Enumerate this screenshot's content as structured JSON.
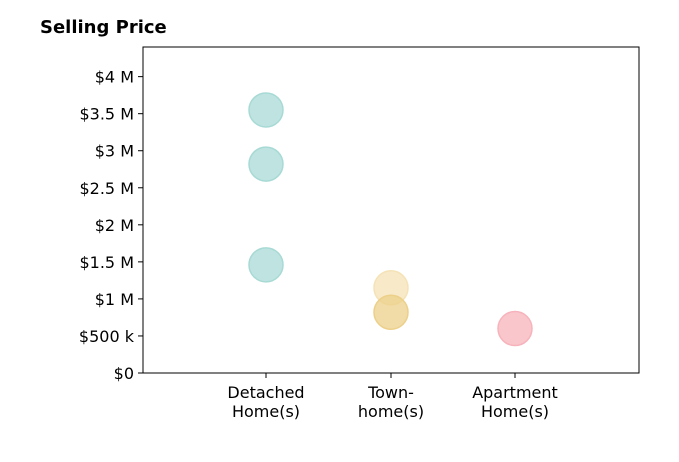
{
  "chart_data": {
    "type": "scatter",
    "title": "Selling Price",
    "categories": [
      [
        "Detached",
        "Home(s)"
      ],
      [
        "Town-",
        "home(s)"
      ],
      [
        "Apartment",
        "Home(s)"
      ]
    ],
    "ylim": [
      0,
      4400000
    ],
    "yticks": [
      0,
      500000,
      1000000,
      1500000,
      2000000,
      2500000,
      3000000,
      3500000,
      4000000
    ],
    "ytick_labels": [
      "$0",
      "$500 k",
      "$1 M",
      "$1.5 M",
      "$2 M",
      "$2.5 M",
      "$3 M",
      "$3.5 M",
      "$4 M"
    ],
    "grid": false,
    "points": [
      {
        "category": 0,
        "value": 3550000,
        "color": "#a8dad5"
      },
      {
        "category": 0,
        "value": 2820000,
        "color": "#a8dad5"
      },
      {
        "category": 0,
        "value": 1460000,
        "color": "#a8dad5"
      },
      {
        "category": 1,
        "value": 1150000,
        "color": "#f5e2b6"
      },
      {
        "category": 1,
        "value": 820000,
        "color": "#ecd08a"
      },
      {
        "category": 2,
        "value": 600000,
        "color": "#f7b3bb"
      }
    ]
  }
}
